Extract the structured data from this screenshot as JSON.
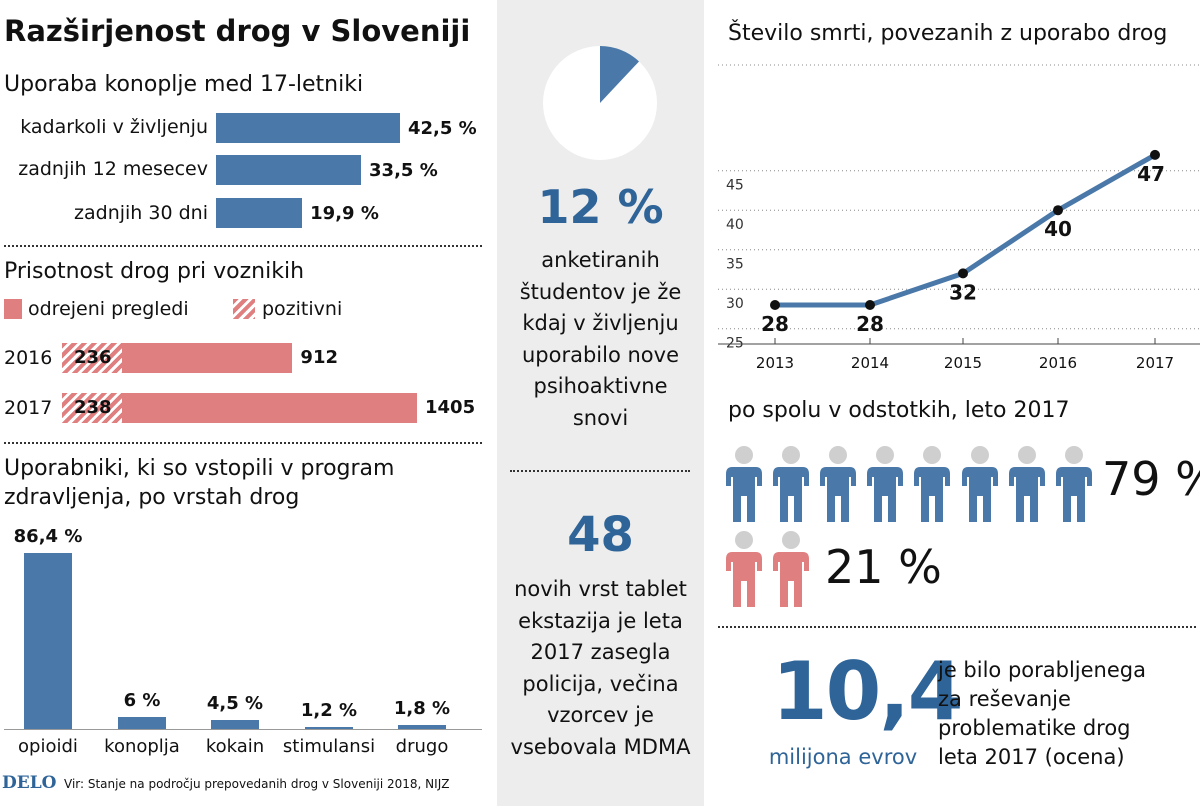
{
  "title": "Razširjenost drog v Sloveniji",
  "cannabis": {
    "heading": "Uporaba konoplje med 17-letniki",
    "rows": [
      {
        "label": "kadarkoli v življenju",
        "value": 42.5,
        "display": "42,5 %"
      },
      {
        "label": "zadnjih 12 mesecev",
        "value": 33.5,
        "display": "33,5 %"
      },
      {
        "label": "zadnjih 30 dni",
        "value": 19.9,
        "display": "19,9 %"
      }
    ]
  },
  "drivers": {
    "heading": "Prisotnost drog pri voznikih",
    "legend_checks": "odrejeni pregledi",
    "legend_positive": "pozitivni",
    "rows": [
      {
        "year": "2016",
        "checks": 912,
        "positive": 236
      },
      {
        "year": "2017",
        "checks": 1405,
        "positive": 238
      }
    ]
  },
  "treatment": {
    "heading_line1": "Uporabniki, ki so vstopili v program",
    "heading_line2": "zdravljenja, po vrstah drog",
    "bars": [
      {
        "label": "opioidi",
        "value": 86.4,
        "display": "86,4 %"
      },
      {
        "label": "konoplja",
        "value": 6.0,
        "display": "6 %"
      },
      {
        "label": "kokain",
        "value": 4.5,
        "display": "4,5 %"
      },
      {
        "label": "stimulansi",
        "value": 1.2,
        "display": "1,2 %"
      },
      {
        "label": "drugo",
        "value": 1.8,
        "display": "1,8 %"
      }
    ]
  },
  "source": {
    "logo": "DELO",
    "text": "Vir: Stanje na področju prepovedanih drog v Sloveniji 2018, NIJZ"
  },
  "students": {
    "percent_value": 12,
    "percent": "12 %",
    "lines": [
      "anketiranih",
      "študentov je že",
      "kdaj v življenju",
      "uporabilo nove",
      "psihoaktivne",
      "snovi"
    ]
  },
  "ecstasy": {
    "number": "48",
    "lines": [
      "novih vrst tablet",
      "ekstazija je leta",
      "2017 zasegla",
      "policija, večina",
      "vzorcev je",
      "vsebovala MDMA"
    ]
  },
  "chart_data": {
    "type": "line",
    "title": "Število smrti, povezanih z uporabo drog",
    "x": [
      "2013",
      "2014",
      "2015",
      "2016",
      "2017"
    ],
    "values": [
      28,
      28,
      32,
      40,
      47
    ],
    "ylim": [
      25,
      47
    ],
    "yticks": [
      "25",
      "30",
      "35",
      "40",
      "45"
    ],
    "grid": "dotted horizontal"
  },
  "gender": {
    "heading": "po spolu v odstotkih, leto 2017",
    "male_percent": "79 %",
    "female_percent": "21 %",
    "male_icons": 8,
    "female_icons": 2,
    "male_color": "#4a78a8",
    "female_color": "#e07f7f"
  },
  "spending": {
    "number": "10,4",
    "unit": "milijona evrov",
    "lines": [
      "je bilo porabljenega",
      "za reševanje",
      "problematike drog",
      "leta 2017 (ocena)"
    ]
  },
  "colors": {
    "blue": "#4a78a8",
    "red": "#e07f7f",
    "dark_blue": "#2f6498",
    "panel_gray": "#ededed"
  }
}
